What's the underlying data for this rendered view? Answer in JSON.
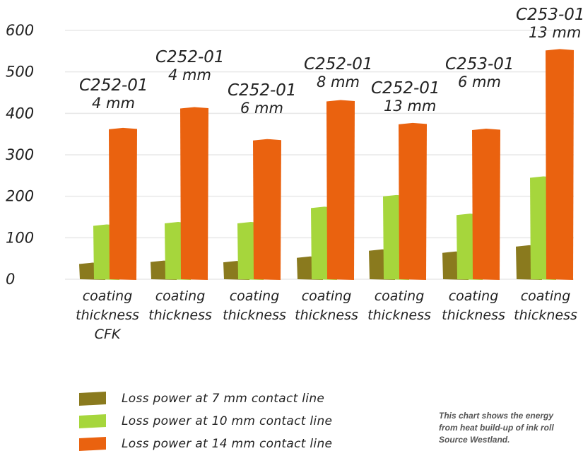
{
  "chart_data": {
    "type": "bar",
    "ylim": [
      0,
      600
    ],
    "yticks": [
      "0",
      "100",
      "200",
      "300",
      "400",
      "500",
      "600"
    ],
    "grid": true,
    "categories": [
      {
        "label": [
          "coating",
          "thickness",
          "CFK"
        ],
        "top_label": [
          "C252-01",
          "4 mm"
        ]
      },
      {
        "label": [
          "coating",
          "thickness"
        ],
        "top_label": [
          "C252-01",
          "4 mm"
        ]
      },
      {
        "label": [
          "coating",
          "thickness"
        ],
        "top_label": [
          "C252-01",
          "6 mm"
        ]
      },
      {
        "label": [
          "coating",
          "thickness"
        ],
        "top_label": [
          "C252-01",
          "8 mm"
        ]
      },
      {
        "label": [
          "coating",
          "thickness"
        ],
        "top_label": [
          "C252-01",
          "13 mm"
        ]
      },
      {
        "label": [
          "coating",
          "thickness"
        ],
        "top_label": [
          "C253-01",
          "6 mm"
        ]
      },
      {
        "label": [
          "coating",
          "thickness"
        ],
        "top_label": [
          "C253-01",
          "13 mm"
        ]
      }
    ],
    "series": [
      {
        "name": "Loss power at 7 mm contact line",
        "color": "#8a7a1e",
        "values": [
          40,
          45,
          44,
          55,
          72,
          67,
          82
        ]
      },
      {
        "name": "Loss power at 10 mm contact line",
        "color": "#a6d63c",
        "values": [
          132,
          138,
          138,
          175,
          203,
          158,
          248
        ]
      },
      {
        "name": "Loss power at 14 mm contact line",
        "color": "#ea620f",
        "values": [
          365,
          415,
          338,
          432,
          377,
          363,
          555
        ]
      }
    ],
    "legend_position": "bottom-left"
  },
  "note": {
    "lines": [
      "This chart shows the energy",
      "from heat build-up of ink roll",
      "Source Westland."
    ]
  }
}
